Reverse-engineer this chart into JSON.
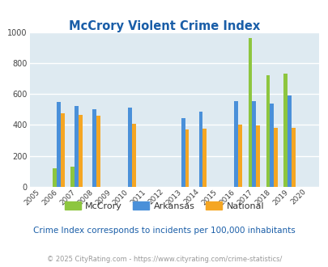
{
  "title": "McCrory Violent Crime Index",
  "all_years": [
    2005,
    2006,
    2007,
    2008,
    2009,
    2010,
    2011,
    2012,
    2013,
    2014,
    2015,
    2016,
    2017,
    2018,
    2019,
    2020
  ],
  "mccrory": {
    "2006": 120,
    "2007": 130,
    "2017": 960,
    "2018": 720,
    "2019": 730
  },
  "arkansas": {
    "2006": 550,
    "2007": 525,
    "2008": 500,
    "2010": 510,
    "2013": 445,
    "2014": 485,
    "2016": 555,
    "2017": 555,
    "2018": 540,
    "2019": 590
  },
  "national": {
    "2006": 475,
    "2007": 465,
    "2008": 460,
    "2010": 407,
    "2013": 370,
    "2014": 375,
    "2016": 400,
    "2017": 397,
    "2018": 383,
    "2019": 380
  },
  "bar_width": 0.22,
  "colors": {
    "mccrory": "#8dc63f",
    "arkansas": "#4a90d9",
    "national": "#f5a623"
  },
  "ylim": [
    0,
    1000
  ],
  "yticks": [
    0,
    200,
    400,
    600,
    800,
    1000
  ],
  "background_color": "#deeaf1",
  "grid_color": "#ffffff",
  "title_color": "#1a5ea8",
  "subtitle": "Crime Index corresponds to incidents per 100,000 inhabitants",
  "footer": "© 2025 CityRating.com - https://www.cityrating.com/crime-statistics/",
  "subtitle_color": "#1a5ea8",
  "footer_color": "#999999",
  "legend_text_color": "#333333"
}
